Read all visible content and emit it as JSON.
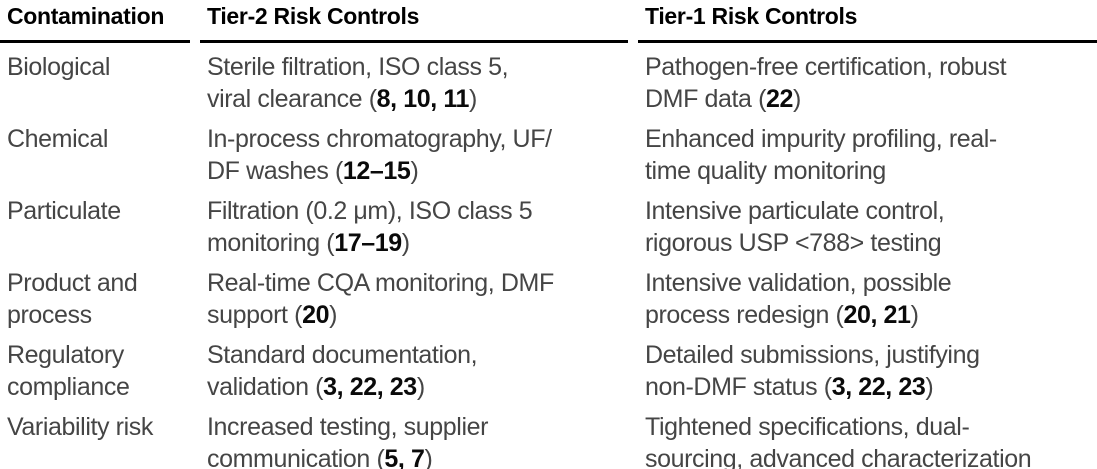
{
  "table": {
    "columns": [
      {
        "label": "Contamination"
      },
      {
        "label": "Tier-2 Risk Controls"
      },
      {
        "label": "Tier-1 Risk Controls"
      }
    ],
    "rows": [
      {
        "contamination": "Biological",
        "tier2": "Sterile filtration, ISO class 5,\nviral clearance (**8, 10, 11**)",
        "tier1": "Pathogen-free certification, robust\nDMF data (**22**)"
      },
      {
        "contamination": "Chemical",
        "tier2": "In-process chromatography, UF/\nDF washes (**12–15**)",
        "tier1": "Enhanced impurity profiling, real-\ntime quality monitoring"
      },
      {
        "contamination": "Particulate",
        "tier2": "Filtration (0.2 μm), ISO class 5\nmonitoring (**17–19**)",
        "tier1": "Intensive particulate control,\nrigorous USP <788> testing"
      },
      {
        "contamination": "Product and\nprocess",
        "tier2": "Real-time CQA monitoring, DMF\nsupport (**20**)",
        "tier1": "Intensive validation, possible\nprocess redesign (**20, 21**)"
      },
      {
        "contamination": "Regulatory\ncompliance",
        "tier2": "Standard documentation,\nvalidation (**3, 22, 23**)",
        "tier1": "Detailed submissions, justifying\nnon-DMF status (**3, 22, 23**)"
      },
      {
        "contamination": "Variability risk",
        "tier2": "Increased testing, supplier\ncommunication (**5, 7**)",
        "tier1": "Tightened specifications, dual-\nsourcing, advanced characterization"
      }
    ]
  },
  "colors": {
    "body_text": "#454545",
    "header_text": "#000000",
    "bold_refs": "#0a0a0a",
    "header_rule": "#000000",
    "background": "#ffffff"
  }
}
